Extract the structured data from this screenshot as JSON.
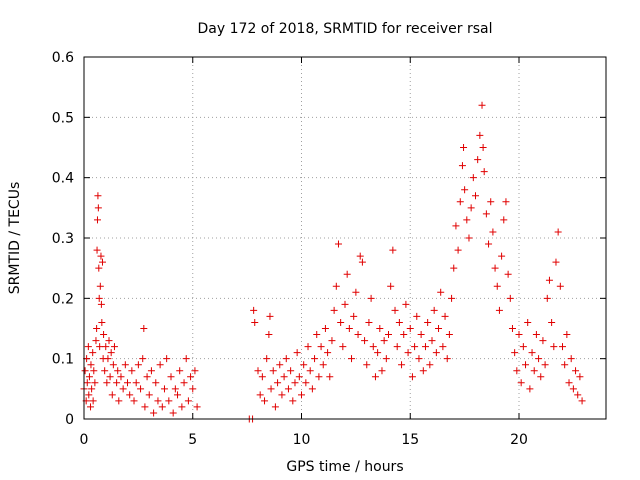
{
  "chart_data": {
    "type": "scatter",
    "title": "Day 172 of 2018, SRMTID for receiver rsal",
    "xlabel": "GPS time / hours",
    "ylabel": "SRMTID / TECUs",
    "xlim": [
      0,
      24
    ],
    "ylim": [
      0,
      0.6
    ],
    "xticks": [
      0,
      5,
      10,
      15,
      20
    ],
    "yticks": [
      0,
      0.1,
      0.2,
      0.3,
      0.4,
      0.5,
      0.6
    ],
    "xtick_labels": [
      "0",
      "5",
      "10",
      "15",
      "20"
    ],
    "ytick_labels": [
      "0",
      "0.1",
      "0.2",
      "0.3",
      "0.4",
      "0.5",
      "0.6"
    ],
    "grid": true,
    "marker": "+",
    "color": "#e00000",
    "series": [
      {
        "name": "rsal",
        "points": [
          [
            0.0,
            0.05
          ],
          [
            0.05,
            0.08
          ],
          [
            0.1,
            0.03
          ],
          [
            0.12,
            0.1
          ],
          [
            0.15,
            0.06
          ],
          [
            0.2,
            0.12
          ],
          [
            0.22,
            0.04
          ],
          [
            0.25,
            0.07
          ],
          [
            0.3,
            0.02
          ],
          [
            0.32,
            0.09
          ],
          [
            0.35,
            0.05
          ],
          [
            0.4,
            0.11
          ],
          [
            0.42,
            0.03
          ],
          [
            0.45,
            0.08
          ],
          [
            0.5,
            0.06
          ],
          [
            0.55,
            0.13
          ],
          [
            0.58,
            0.15
          ],
          [
            0.6,
            0.28
          ],
          [
            0.62,
            0.33
          ],
          [
            0.64,
            0.37
          ],
          [
            0.66,
            0.35
          ],
          [
            0.68,
            0.25
          ],
          [
            0.7,
            0.2
          ],
          [
            0.72,
            0.12
          ],
          [
            0.75,
            0.22
          ],
          [
            0.78,
            0.27
          ],
          [
            0.8,
            0.19
          ],
          [
            0.82,
            0.16
          ],
          [
            0.85,
            0.26
          ],
          [
            0.88,
            0.1
          ],
          [
            0.9,
            0.14
          ],
          [
            0.95,
            0.08
          ],
          [
            1.0,
            0.12
          ],
          [
            1.05,
            0.06
          ],
          [
            1.1,
            0.1
          ],
          [
            1.15,
            0.13
          ],
          [
            1.2,
            0.07
          ],
          [
            1.25,
            0.11
          ],
          [
            1.3,
            0.04
          ],
          [
            1.35,
            0.09
          ],
          [
            1.4,
            0.12
          ],
          [
            1.5,
            0.06
          ],
          [
            1.55,
            0.08
          ],
          [
            1.6,
            0.03
          ],
          [
            1.7,
            0.07
          ],
          [
            1.8,
            0.05
          ],
          [
            1.9,
            0.09
          ],
          [
            2.0,
            0.06
          ],
          [
            2.1,
            0.04
          ],
          [
            2.2,
            0.08
          ],
          [
            2.3,
            0.03
          ],
          [
            2.4,
            0.06
          ],
          [
            2.5,
            0.09
          ],
          [
            2.6,
            0.05
          ],
          [
            2.7,
            0.1
          ],
          [
            2.75,
            0.15
          ],
          [
            2.8,
            0.02
          ],
          [
            2.9,
            0.07
          ],
          [
            3.0,
            0.04
          ],
          [
            3.1,
            0.08
          ],
          [
            3.2,
            0.01
          ],
          [
            3.3,
            0.06
          ],
          [
            3.4,
            0.03
          ],
          [
            3.5,
            0.09
          ],
          [
            3.6,
            0.02
          ],
          [
            3.7,
            0.05
          ],
          [
            3.8,
            0.1
          ],
          [
            3.9,
            0.03
          ],
          [
            4.0,
            0.07
          ],
          [
            4.1,
            0.01
          ],
          [
            4.2,
            0.05
          ],
          [
            4.3,
            0.04
          ],
          [
            4.4,
            0.08
          ],
          [
            4.5,
            0.02
          ],
          [
            4.6,
            0.06
          ],
          [
            4.7,
            0.1
          ],
          [
            4.8,
            0.03
          ],
          [
            4.9,
            0.07
          ],
          [
            5.0,
            0.05
          ],
          [
            5.1,
            0.08
          ],
          [
            5.2,
            0.02
          ],
          [
            7.6,
            0.0
          ],
          [
            7.75,
            0.0
          ],
          [
            7.8,
            0.18
          ],
          [
            7.85,
            0.16
          ],
          [
            8.0,
            0.08
          ],
          [
            8.1,
            0.04
          ],
          [
            8.2,
            0.07
          ],
          [
            8.3,
            0.03
          ],
          [
            8.4,
            0.1
          ],
          [
            8.5,
            0.14
          ],
          [
            8.55,
            0.17
          ],
          [
            8.6,
            0.05
          ],
          [
            8.7,
            0.08
          ],
          [
            8.8,
            0.02
          ],
          [
            8.9,
            0.06
          ],
          [
            9.0,
            0.09
          ],
          [
            9.1,
            0.04
          ],
          [
            9.2,
            0.07
          ],
          [
            9.3,
            0.1
          ],
          [
            9.4,
            0.05
          ],
          [
            9.5,
            0.08
          ],
          [
            9.6,
            0.03
          ],
          [
            9.7,
            0.06
          ],
          [
            9.8,
            0.11
          ],
          [
            9.9,
            0.07
          ],
          [
            10.0,
            0.04
          ],
          [
            10.1,
            0.09
          ],
          [
            10.2,
            0.06
          ],
          [
            10.3,
            0.12
          ],
          [
            10.4,
            0.08
          ],
          [
            10.5,
            0.05
          ],
          [
            10.6,
            0.1
          ],
          [
            10.7,
            0.14
          ],
          [
            10.8,
            0.07
          ],
          [
            10.9,
            0.12
          ],
          [
            11.0,
            0.09
          ],
          [
            11.1,
            0.15
          ],
          [
            11.2,
            0.11
          ],
          [
            11.3,
            0.07
          ],
          [
            11.4,
            0.13
          ],
          [
            11.5,
            0.18
          ],
          [
            11.6,
            0.22
          ],
          [
            11.7,
            0.29
          ],
          [
            11.8,
            0.16
          ],
          [
            11.9,
            0.12
          ],
          [
            12.0,
            0.19
          ],
          [
            12.1,
            0.24
          ],
          [
            12.2,
            0.15
          ],
          [
            12.3,
            0.1
          ],
          [
            12.4,
            0.17
          ],
          [
            12.5,
            0.21
          ],
          [
            12.6,
            0.14
          ],
          [
            12.7,
            0.27
          ],
          [
            12.8,
            0.26
          ],
          [
            12.9,
            0.13
          ],
          [
            13.0,
            0.09
          ],
          [
            13.1,
            0.16
          ],
          [
            13.2,
            0.2
          ],
          [
            13.3,
            0.12
          ],
          [
            13.4,
            0.07
          ],
          [
            13.5,
            0.11
          ],
          [
            13.6,
            0.15
          ],
          [
            13.7,
            0.08
          ],
          [
            13.8,
            0.13
          ],
          [
            13.9,
            0.1
          ],
          [
            14.0,
            0.14
          ],
          [
            14.1,
            0.22
          ],
          [
            14.2,
            0.28
          ],
          [
            14.3,
            0.18
          ],
          [
            14.4,
            0.12
          ],
          [
            14.5,
            0.16
          ],
          [
            14.6,
            0.09
          ],
          [
            14.7,
            0.14
          ],
          [
            14.8,
            0.19
          ],
          [
            14.9,
            0.11
          ],
          [
            15.0,
            0.15
          ],
          [
            15.1,
            0.07
          ],
          [
            15.2,
            0.12
          ],
          [
            15.3,
            0.17
          ],
          [
            15.4,
            0.1
          ],
          [
            15.5,
            0.14
          ],
          [
            15.6,
            0.08
          ],
          [
            15.7,
            0.12
          ],
          [
            15.8,
            0.16
          ],
          [
            15.9,
            0.09
          ],
          [
            16.0,
            0.13
          ],
          [
            16.1,
            0.18
          ],
          [
            16.2,
            0.11
          ],
          [
            16.3,
            0.15
          ],
          [
            16.4,
            0.21
          ],
          [
            16.5,
            0.12
          ],
          [
            16.6,
            0.17
          ],
          [
            16.7,
            0.1
          ],
          [
            16.8,
            0.14
          ],
          [
            16.9,
            0.2
          ],
          [
            17.0,
            0.25
          ],
          [
            17.1,
            0.32
          ],
          [
            17.2,
            0.28
          ],
          [
            17.3,
            0.36
          ],
          [
            17.4,
            0.42
          ],
          [
            17.45,
            0.45
          ],
          [
            17.5,
            0.38
          ],
          [
            17.6,
            0.33
          ],
          [
            17.7,
            0.3
          ],
          [
            17.8,
            0.35
          ],
          [
            17.9,
            0.4
          ],
          [
            18.0,
            0.37
          ],
          [
            18.1,
            0.43
          ],
          [
            18.2,
            0.47
          ],
          [
            18.3,
            0.52
          ],
          [
            18.35,
            0.45
          ],
          [
            18.4,
            0.41
          ],
          [
            18.5,
            0.34
          ],
          [
            18.6,
            0.29
          ],
          [
            18.7,
            0.36
          ],
          [
            18.8,
            0.31
          ],
          [
            18.9,
            0.25
          ],
          [
            19.0,
            0.22
          ],
          [
            19.1,
            0.18
          ],
          [
            19.2,
            0.27
          ],
          [
            19.3,
            0.33
          ],
          [
            19.4,
            0.36
          ],
          [
            19.5,
            0.24
          ],
          [
            19.6,
            0.2
          ],
          [
            19.7,
            0.15
          ],
          [
            19.8,
            0.11
          ],
          [
            19.9,
            0.08
          ],
          [
            20.0,
            0.14
          ],
          [
            20.1,
            0.06
          ],
          [
            20.2,
            0.12
          ],
          [
            20.3,
            0.09
          ],
          [
            20.4,
            0.16
          ],
          [
            20.5,
            0.05
          ],
          [
            20.6,
            0.11
          ],
          [
            20.7,
            0.08
          ],
          [
            20.8,
            0.14
          ],
          [
            20.9,
            0.1
          ],
          [
            21.0,
            0.07
          ],
          [
            21.1,
            0.13
          ],
          [
            21.2,
            0.09
          ],
          [
            21.3,
            0.2
          ],
          [
            21.4,
            0.23
          ],
          [
            21.5,
            0.16
          ],
          [
            21.6,
            0.12
          ],
          [
            21.7,
            0.26
          ],
          [
            21.8,
            0.31
          ],
          [
            21.9,
            0.22
          ],
          [
            22.0,
            0.12
          ],
          [
            22.1,
            0.09
          ],
          [
            22.2,
            0.14
          ],
          [
            22.3,
            0.06
          ],
          [
            22.4,
            0.1
          ],
          [
            22.5,
            0.05
          ],
          [
            22.6,
            0.08
          ],
          [
            22.7,
            0.04
          ],
          [
            22.8,
            0.07
          ],
          [
            22.9,
            0.03
          ]
        ]
      }
    ]
  }
}
